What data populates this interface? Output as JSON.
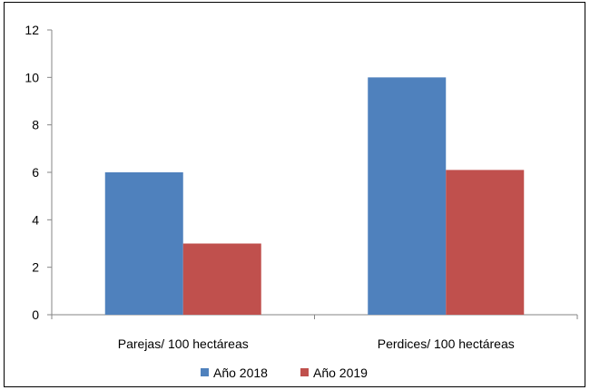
{
  "chart_data": {
    "type": "bar",
    "categories": [
      "Parejas/ 100 hectáreas",
      "Perdices/ 100 hectáreas"
    ],
    "series": [
      {
        "name": "Año 2018",
        "values": [
          6,
          10
        ],
        "color": "#4F81BD"
      },
      {
        "name": "Año 2019",
        "values": [
          3,
          6.1
        ],
        "color": "#C0504D"
      }
    ],
    "ylim": [
      0,
      12
    ],
    "yticks": [
      0,
      2,
      4,
      6,
      8,
      10,
      12
    ],
    "grid": false,
    "legend_position": "bottom"
  }
}
